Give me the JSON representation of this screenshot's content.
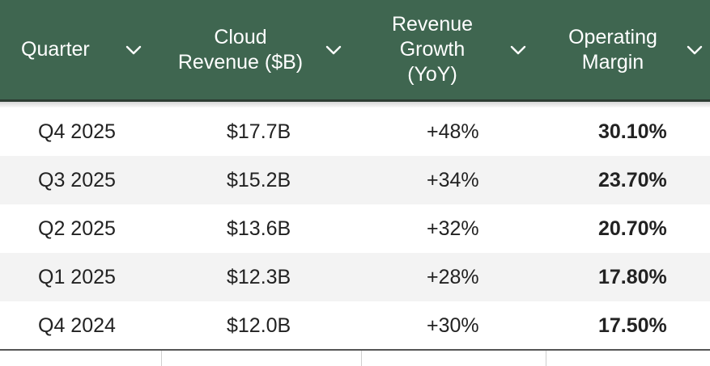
{
  "table": {
    "columns": [
      {
        "label": "Quarter",
        "sort_icon": "chevron-down-icon"
      },
      {
        "label": "Cloud\nRevenue ($B)",
        "sort_icon": "chevron-down-icon"
      },
      {
        "label": "Revenue\nGrowth\n(YoY)",
        "sort_icon": "chevron-down-icon"
      },
      {
        "label": "Operating\nMargin",
        "sort_icon": "chevron-down-icon"
      }
    ],
    "rows": [
      {
        "quarter": "Q4 2025",
        "revenue": "$17.7B",
        "growth": "+48%",
        "margin": "30.10%"
      },
      {
        "quarter": "Q3 2025",
        "revenue": "$15.2B",
        "growth": "+34%",
        "margin": "23.70%"
      },
      {
        "quarter": "Q2 2025",
        "revenue": "$13.6B",
        "growth": "+32%",
        "margin": "20.70%"
      },
      {
        "quarter": "Q1 2025",
        "revenue": "$12.3B",
        "growth": "+28%",
        "margin": "17.80%"
      },
      {
        "quarter": "Q4 2024",
        "revenue": "$12.0B",
        "growth": "+30%",
        "margin": "17.50%"
      }
    ]
  },
  "colors": {
    "header_bg": "#3f6650",
    "header_text": "#ffffff",
    "row_alt_bg": "#f3f3f3",
    "text": "#222222"
  }
}
